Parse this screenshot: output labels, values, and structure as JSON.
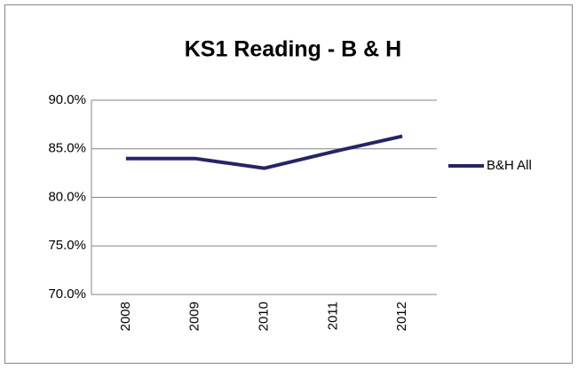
{
  "chart_data": {
    "type": "line",
    "title": "KS1 Reading - B & H",
    "categories": [
      "2008",
      "2009",
      "2010",
      "2011",
      "2012"
    ],
    "series": [
      {
        "name": "B&H All",
        "color": "#262466",
        "values": [
          84,
          84,
          83,
          84.7,
          86.3
        ]
      }
    ],
    "ylim": [
      70,
      90
    ],
    "yticks": [
      {
        "value": 70,
        "label": "70.0%"
      },
      {
        "value": 75,
        "label": "75.0%"
      },
      {
        "value": 80,
        "label": "80.0%"
      },
      {
        "value": 85,
        "label": "85.0%"
      },
      {
        "value": 90,
        "label": "90.0%"
      }
    ],
    "grid": true,
    "legend": "right"
  }
}
